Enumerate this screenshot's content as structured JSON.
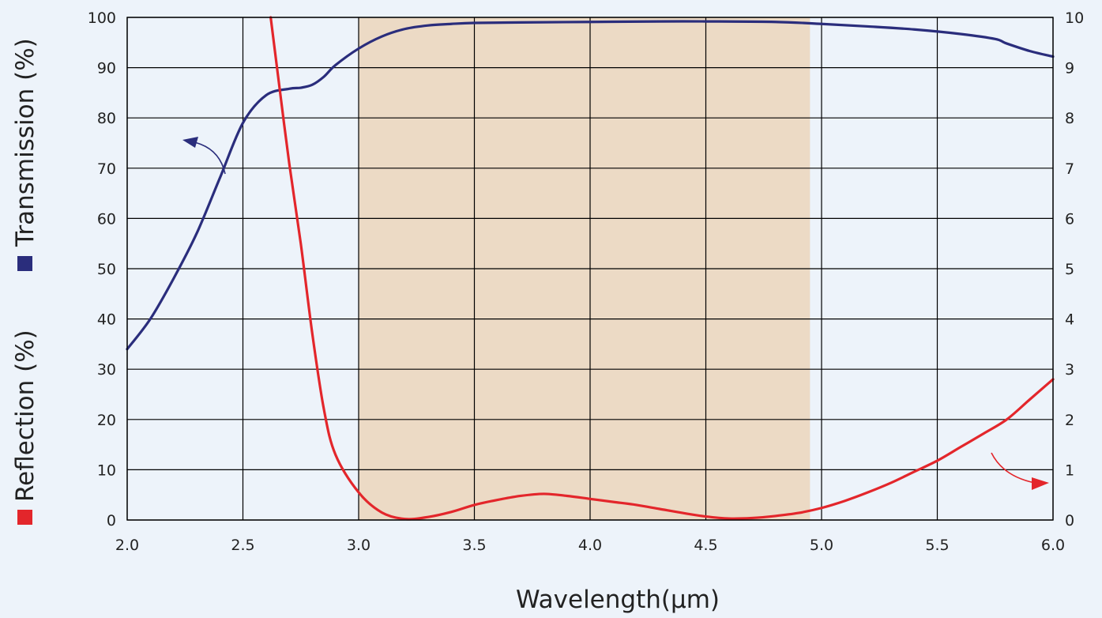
{
  "chart_data": {
    "type": "line",
    "xlabel": "Wavelength(μm)",
    "ylabel_left": "Transmission (%)",
    "ylabel_left_secondary": "Reflection (%)",
    "xlim": [
      2.0,
      6.0
    ],
    "ylim_left": [
      0,
      100
    ],
    "ylim_right": [
      0,
      10
    ],
    "x_ticks": [
      "2.0",
      "2.5",
      "3.0",
      "3.5",
      "4.0",
      "4.5",
      "5.0",
      "5.5",
      "6.0"
    ],
    "y_ticks_left": [
      "0",
      "10",
      "20",
      "30",
      "40",
      "50",
      "60",
      "70",
      "80",
      "90",
      "100"
    ],
    "y_ticks_right": [
      "0",
      "1",
      "2",
      "3",
      "4",
      "5",
      "6",
      "7",
      "8",
      "9",
      "10"
    ],
    "grid": true,
    "highlight_band": [
      3.0,
      4.95
    ],
    "colors": {
      "transmission": "#2a2d7c",
      "reflection": "#e3262b",
      "band": "#ecdac5",
      "background": "#edf3fa"
    },
    "series": [
      {
        "name": "Transmission (%)",
        "axis": "left",
        "x": [
          2.0,
          2.1,
          2.2,
          2.3,
          2.4,
          2.5,
          2.6,
          2.7,
          2.75,
          2.8,
          2.85,
          2.9,
          3.0,
          3.1,
          3.2,
          3.3,
          3.4,
          3.5,
          3.7,
          4.0,
          4.3,
          4.5,
          4.8,
          5.0,
          5.2,
          5.4,
          5.6,
          5.75,
          5.8,
          5.9,
          6.0
        ],
        "y": [
          34,
          40,
          48,
          57,
          68,
          79,
          84.5,
          85.8,
          86,
          86.6,
          88.2,
          90.5,
          93.8,
          96.2,
          97.7,
          98.4,
          98.7,
          98.9,
          99.0,
          99.1,
          99.2,
          99.2,
          99.1,
          98.7,
          98.2,
          97.6,
          96.7,
          95.7,
          94.8,
          93.3,
          92.2
        ]
      },
      {
        "name": "Reflection (%)",
        "axis": "right",
        "x": [
          2.62,
          2.65,
          2.7,
          2.75,
          2.8,
          2.85,
          2.9,
          3.0,
          3.1,
          3.2,
          3.3,
          3.4,
          3.5,
          3.6,
          3.7,
          3.8,
          3.9,
          4.0,
          4.1,
          4.2,
          4.3,
          4.4,
          4.5,
          4.6,
          4.7,
          4.8,
          4.9,
          5.0,
          5.1,
          5.2,
          5.3,
          5.4,
          5.5,
          5.6,
          5.7,
          5.8,
          5.9,
          6.0
        ],
        "y": [
          10.0,
          8.9,
          7.1,
          5.5,
          3.7,
          2.2,
          1.3,
          0.55,
          0.15,
          0.02,
          0.06,
          0.16,
          0.3,
          0.4,
          0.48,
          0.52,
          0.48,
          0.42,
          0.36,
          0.3,
          0.22,
          0.14,
          0.07,
          0.03,
          0.04,
          0.08,
          0.14,
          0.24,
          0.38,
          0.55,
          0.74,
          0.96,
          1.18,
          1.45,
          1.72,
          2.0,
          2.4,
          2.8
        ]
      }
    ],
    "annotations": [
      {
        "target": "transmission",
        "direction": "left-axis"
      },
      {
        "target": "reflection",
        "direction": "right-axis"
      }
    ]
  }
}
